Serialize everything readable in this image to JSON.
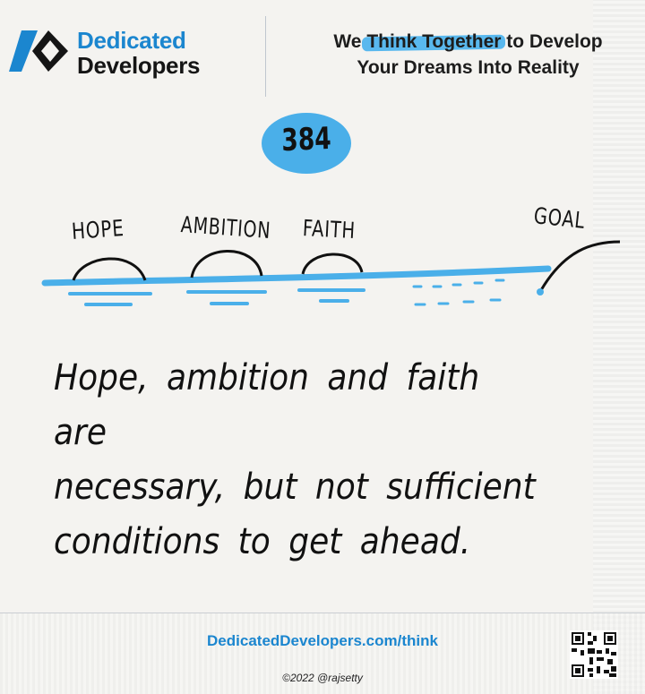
{
  "brand": {
    "name_line1": "Dedicated",
    "name_line2": "Developers",
    "primary_color": "#1b86cf",
    "logo_icon": "chevron-logo-icon"
  },
  "tagline": {
    "prefix": "We ",
    "highlight": "Think Together",
    "suffix": " to Develop",
    "line2": "Your Dreams Into Reality",
    "highlight_color": "#59b8ee"
  },
  "number": "384",
  "illustration": {
    "labels": [
      "HOPE",
      "AMBITION",
      "FAITH"
    ],
    "goal_label": "GOAL",
    "water_color": "#4aafe9"
  },
  "quote": {
    "line1": "Hope, ambition and faith are",
    "line2": "necessary, but not sufficient",
    "line3": "conditions to get ahead."
  },
  "footer": {
    "url": "DedicatedDevelopers.com/think",
    "copyright": "©2022 @rajsetty",
    "qr_icon": "qr-code-icon"
  }
}
